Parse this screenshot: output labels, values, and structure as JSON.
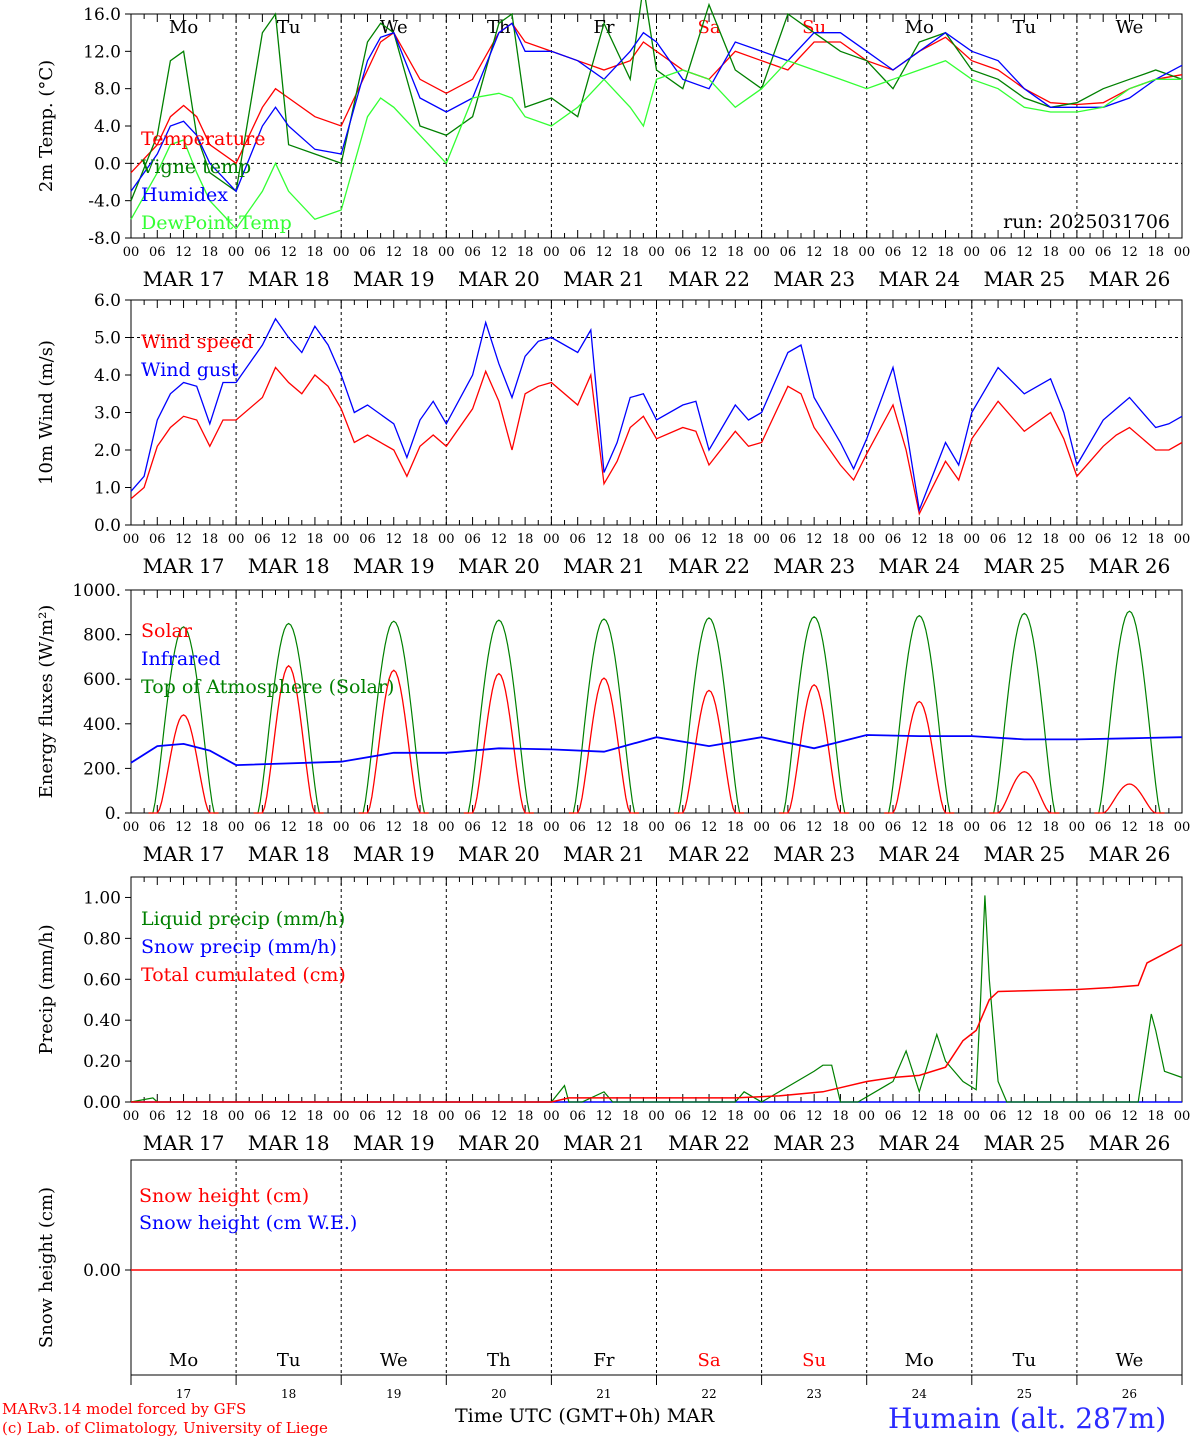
{
  "days": {
    "names": [
      "Mo",
      "Tu",
      "We",
      "Th",
      "Fr",
      "Sa",
      "Su",
      "Mo",
      "Tu",
      "We"
    ],
    "weekend": [
      false,
      false,
      false,
      false,
      false,
      true,
      true,
      false,
      false,
      false
    ],
    "dates": [
      "MAR 17",
      "MAR 18",
      "MAR 19",
      "MAR 20",
      "MAR 21",
      "MAR 22",
      "MAR 23",
      "MAR 24",
      "MAR 25",
      "MAR 26"
    ],
    "nums": [
      "17",
      "18",
      "19",
      "20",
      "21",
      "22",
      "23",
      "24",
      "25",
      "26"
    ],
    "hours": [
      "00",
      "06",
      "12",
      "18"
    ],
    "final_hour": "00"
  },
  "colors": {
    "red": "#ff0000",
    "green": "#008000",
    "blue": "#0000ff",
    "lightgreen": "#33ff33",
    "weekend": "#ff0000"
  },
  "run_label": "run: 2025031706",
  "footer": {
    "model": "MARv3.14 model forced by GFS",
    "lab": "(c) Lab. of Climatology, University of Liege",
    "time_label": "Time UTC (GMT+0h) MAR",
    "station": "Humain (alt. 287m)"
  },
  "chart_data": [
    {
      "type": "line",
      "ylabel": "2m Temp. (°C)",
      "ylim": [
        -8,
        16
      ],
      "yticks": [
        "-8.0",
        "-4.0",
        "0.0",
        "4.0",
        "8.0",
        "12.0",
        "16.0"
      ],
      "dashed_y": 0,
      "x_unit": "hours since MAR 17 00 UTC",
      "series": [
        {
          "name": "Temperature",
          "color": "#ff0000",
          "x": [
            0,
            6,
            9,
            12,
            15,
            18,
            24,
            30,
            33,
            36,
            42,
            48,
            54,
            57,
            60,
            66,
            72,
            78,
            84,
            87,
            90,
            96,
            102,
            108,
            114,
            117,
            120,
            126,
            132,
            138,
            144,
            150,
            156,
            162,
            168,
            174,
            180,
            186,
            192,
            198,
            204,
            210,
            216,
            222,
            228,
            234,
            240
          ],
          "y": [
            -1,
            2,
            5,
            6.2,
            5,
            2,
            0,
            6,
            8,
            7,
            5,
            4,
            10,
            13,
            14,
            9,
            7.5,
            9,
            14,
            15,
            13,
            12,
            11,
            10,
            11,
            13,
            12,
            10,
            9,
            12,
            11,
            10,
            13,
            13,
            11,
            10,
            12,
            13.5,
            11,
            10,
            8,
            6.5,
            6.3,
            6.5,
            8,
            9,
            9.5
          ]
        },
        {
          "name": "Vigne temp",
          "color": "#008000",
          "x": [
            0,
            6,
            9,
            12,
            15,
            18,
            24,
            30,
            33,
            36,
            42,
            48,
            54,
            57,
            60,
            66,
            72,
            78,
            84,
            87,
            90,
            96,
            102,
            108,
            114,
            117,
            120,
            126,
            132,
            138,
            144,
            150,
            156,
            162,
            168,
            174,
            180,
            186,
            192,
            198,
            204,
            210,
            216,
            222,
            228,
            234,
            240
          ],
          "y": [
            -4,
            3,
            11,
            12,
            3,
            -1,
            -3,
            14,
            16,
            2,
            1,
            0,
            13,
            15,
            14,
            4,
            3,
            5,
            15,
            16,
            6,
            7,
            5,
            15,
            9,
            19,
            10,
            8,
            17,
            10,
            8,
            16,
            14,
            12,
            11,
            8,
            13,
            14,
            10,
            9,
            7,
            6,
            6.5,
            8,
            9,
            10,
            9
          ]
        },
        {
          "name": "Humidex",
          "color": "#0000ff",
          "x": [
            0,
            6,
            9,
            12,
            15,
            18,
            24,
            30,
            33,
            36,
            42,
            48,
            54,
            57,
            60,
            66,
            72,
            78,
            84,
            87,
            90,
            96,
            102,
            108,
            114,
            117,
            120,
            126,
            132,
            138,
            144,
            150,
            156,
            162,
            168,
            174,
            180,
            186,
            192,
            198,
            204,
            210,
            216,
            222,
            228,
            234,
            240
          ],
          "y": [
            -3,
            1,
            4,
            4.5,
            3,
            0,
            -3,
            4,
            6,
            4,
            1.5,
            1,
            11,
            13.5,
            14,
            7,
            5.5,
            7,
            14,
            15,
            12,
            12,
            11,
            9,
            12,
            14,
            13,
            9,
            8,
            13,
            12,
            11,
            14,
            14,
            12,
            10,
            12,
            14,
            12,
            11,
            8,
            6,
            6,
            6,
            7,
            9,
            10.5
          ]
        },
        {
          "name": "DewPoint Temp",
          "color": "#33ff33",
          "x": [
            0,
            6,
            9,
            12,
            15,
            18,
            24,
            30,
            33,
            36,
            42,
            48,
            54,
            57,
            60,
            66,
            72,
            78,
            84,
            87,
            90,
            96,
            102,
            108,
            114,
            117,
            120,
            126,
            132,
            138,
            144,
            150,
            156,
            162,
            168,
            174,
            180,
            186,
            192,
            198,
            204,
            210,
            216,
            222,
            228,
            234,
            240
          ],
          "y": [
            -6,
            -1,
            2,
            2.5,
            -1,
            -4,
            -7,
            -3,
            0,
            -3,
            -6,
            -5,
            5,
            7,
            6,
            3,
            0,
            7,
            7.5,
            7,
            5,
            4,
            6,
            9,
            6,
            4,
            9,
            10,
            9,
            6,
            8,
            11,
            10,
            9,
            8,
            9,
            10,
            11,
            9,
            8,
            6,
            5.5,
            5.5,
            6,
            8,
            9,
            9
          ]
        }
      ]
    },
    {
      "type": "line",
      "ylabel": "10m Wind (m/s)",
      "ylim": [
        0,
        6
      ],
      "yticks": [
        "0.0",
        "1.0",
        "2.0",
        "3.0",
        "4.0",
        "5.0",
        "6.0"
      ],
      "dashed_y": 5,
      "x_unit": "hours since MAR 17 00 UTC",
      "series": [
        {
          "name": "Wind speed",
          "color": "#ff0000",
          "x": [
            0,
            3,
            6,
            9,
            12,
            15,
            18,
            21,
            24,
            30,
            33,
            36,
            39,
            42,
            45,
            48,
            51,
            54,
            60,
            63,
            66,
            69,
            72,
            78,
            81,
            84,
            87,
            90,
            93,
            96,
            102,
            105,
            108,
            111,
            114,
            117,
            120,
            126,
            129,
            132,
            138,
            141,
            144,
            150,
            153,
            156,
            162,
            165,
            168,
            174,
            177,
            180,
            186,
            189,
            192,
            198,
            204,
            210,
            213,
            216,
            222,
            225,
            228,
            234,
            237,
            240
          ],
          "y": [
            0.7,
            1,
            2.1,
            2.6,
            2.9,
            2.8,
            2.1,
            2.8,
            2.8,
            3.4,
            4.2,
            3.8,
            3.5,
            4,
            3.7,
            3.1,
            2.2,
            2.4,
            2,
            1.3,
            2.1,
            2.4,
            2.1,
            3.1,
            4.1,
            3.3,
            2,
            3.5,
            3.7,
            3.8,
            3.2,
            4,
            1.1,
            1.7,
            2.6,
            2.9,
            2.3,
            2.6,
            2.5,
            1.6,
            2.5,
            2.1,
            2.2,
            3.7,
            3.5,
            2.6,
            1.6,
            1.2,
            1.9,
            3.2,
            2,
            0.3,
            1.7,
            1.2,
            2.3,
            3.3,
            2.5,
            3,
            2.3,
            1.3,
            2.1,
            2.4,
            2.6,
            2,
            2,
            2.2
          ]
        },
        {
          "name": "Wind gust",
          "color": "#0000ff",
          "x": [
            0,
            3,
            6,
            9,
            12,
            15,
            18,
            21,
            24,
            30,
            33,
            36,
            39,
            42,
            45,
            48,
            51,
            54,
            60,
            63,
            66,
            69,
            72,
            78,
            81,
            84,
            87,
            90,
            93,
            96,
            102,
            105,
            108,
            111,
            114,
            117,
            120,
            126,
            129,
            132,
            138,
            141,
            144,
            150,
            153,
            156,
            162,
            165,
            168,
            174,
            177,
            180,
            186,
            189,
            192,
            198,
            204,
            210,
            213,
            216,
            222,
            225,
            228,
            234,
            237,
            240
          ],
          "y": [
            0.9,
            1.3,
            2.8,
            3.5,
            3.8,
            3.7,
            2.7,
            3.8,
            3.8,
            4.8,
            5.5,
            5,
            4.6,
            5.3,
            4.8,
            4,
            3,
            3.2,
            2.7,
            1.8,
            2.8,
            3.3,
            2.7,
            4,
            5.4,
            4.3,
            3.4,
            4.5,
            4.9,
            5,
            4.6,
            5.2,
            1.4,
            2.2,
            3.4,
            3.5,
            2.8,
            3.2,
            3.3,
            2,
            3.2,
            2.8,
            3,
            4.6,
            4.8,
            3.4,
            2.2,
            1.5,
            2.3,
            4.2,
            2.6,
            0.4,
            2.2,
            1.6,
            3,
            4.2,
            3.5,
            3.9,
            3,
            1.6,
            2.8,
            3.1,
            3.4,
            2.6,
            2.7,
            2.9
          ]
        }
      ]
    },
    {
      "type": "line",
      "ylabel": "Energy fluxes (W/m²)",
      "ylim": [
        0,
        1000
      ],
      "yticks": [
        "0.",
        "200.",
        "400.",
        "600.",
        "800.",
        "1000."
      ],
      "x_unit": "hours since MAR 17 00 UTC",
      "solar_peaks": [
        440,
        660,
        640,
        625,
        605,
        550,
        575,
        500,
        185,
        130
      ],
      "toa_peaks": [
        835,
        850,
        860,
        865,
        870,
        875,
        880,
        885,
        895,
        905
      ],
      "series": [
        {
          "name": "Solar",
          "color": "#ff0000"
        },
        {
          "name": "Infrared",
          "color": "#0000ff",
          "x": [
            0,
            6,
            12,
            18,
            24,
            48,
            60,
            72,
            84,
            96,
            108,
            120,
            132,
            144,
            156,
            168,
            180,
            192,
            204,
            216,
            228,
            240
          ],
          "y": [
            225,
            300,
            310,
            280,
            215,
            230,
            270,
            270,
            290,
            285,
            275,
            340,
            300,
            340,
            290,
            350,
            345,
            345,
            330,
            330,
            335,
            340
          ]
        },
        {
          "name": "Top of Atmosphere (Solar)",
          "color": "#008000"
        }
      ]
    },
    {
      "type": "line",
      "ylabel": "Precip (mm/h)",
      "ylim": [
        0,
        1.1
      ],
      "yticks": [
        "0.00",
        "0.20",
        "0.40",
        "0.60",
        "0.80",
        "1.00"
      ],
      "x_unit": "hours since MAR 17 00 UTC",
      "series": [
        {
          "name": "Liquid precip (mm/h)",
          "color": "#008000",
          "x": [
            0,
            5,
            6,
            96,
            99,
            100,
            103,
            108,
            110,
            114,
            138,
            140,
            144,
            156,
            158,
            160,
            162,
            166,
            174,
            177,
            180,
            184,
            186,
            190,
            193,
            194,
            195,
            196,
            198,
            200,
            230,
            233,
            234,
            236,
            240
          ],
          "y": [
            0,
            0.02,
            0,
            0,
            0.08,
            0,
            0,
            0.05,
            0,
            0,
            0,
            0.05,
            0,
            0.15,
            0.18,
            0.18,
            0,
            0,
            0.1,
            0.25,
            0.05,
            0.33,
            0.2,
            0.1,
            0.06,
            0.5,
            1.01,
            0.6,
            0.1,
            0,
            0,
            0.43,
            0.35,
            0.15,
            0.12
          ]
        },
        {
          "name": "Snow precip (mm/h)",
          "color": "#0000ff",
          "x": [
            0,
            240
          ],
          "y": [
            0,
            0
          ]
        },
        {
          "name": "Total cumulated (cm)",
          "color": "#ff0000",
          "x": [
            0,
            96,
            100,
            138,
            148,
            158,
            162,
            168,
            174,
            180,
            186,
            190,
            193,
            196,
            198,
            216,
            224,
            230,
            232,
            240
          ],
          "y": [
            0,
            0,
            0.02,
            0.02,
            0.03,
            0.05,
            0.07,
            0.1,
            0.12,
            0.13,
            0.17,
            0.3,
            0.35,
            0.5,
            0.54,
            0.55,
            0.56,
            0.57,
            0.68,
            0.77
          ]
        }
      ]
    },
    {
      "type": "line",
      "ylabel": "Snow height (cm)",
      "yticks": [
        "0.00"
      ],
      "x_unit": "hours since MAR 17 00 UTC",
      "series": [
        {
          "name": "Snow height (cm)",
          "color": "#ff0000",
          "x": [
            0,
            240
          ],
          "y": [
            0,
            0
          ]
        },
        {
          "name": "Snow height (cm W.E.)",
          "color": "#0000ff"
        }
      ]
    }
  ]
}
